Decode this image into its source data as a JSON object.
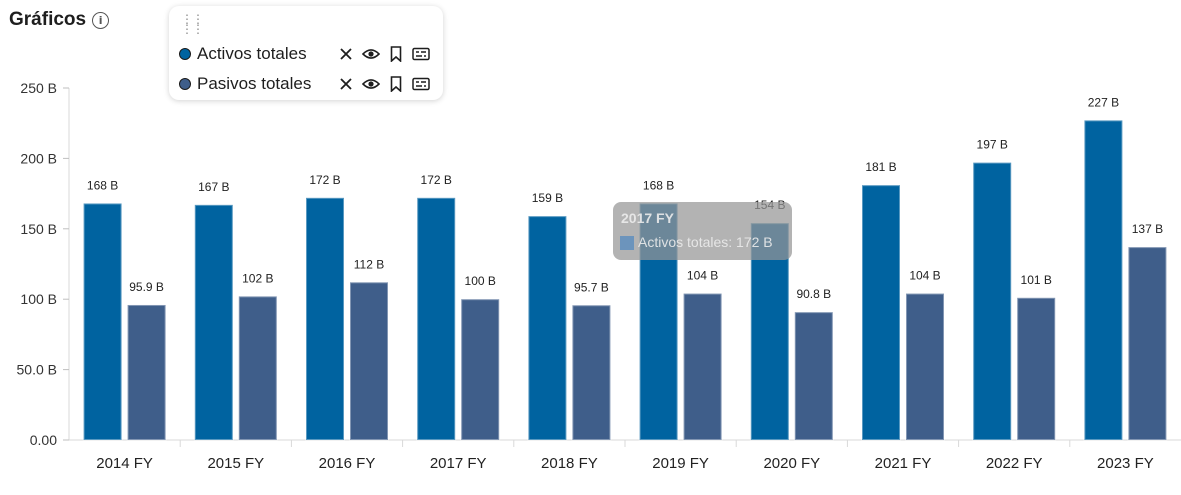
{
  "page": {
    "title": "Gráficos"
  },
  "legend": {
    "items": [
      {
        "label": "Activos totales",
        "color": "#0063a0"
      },
      {
        "label": "Pasivos totales",
        "color": "#3f5e8a"
      }
    ],
    "actions": [
      "close-icon",
      "eye-icon",
      "bookmark-icon",
      "details-icon"
    ]
  },
  "tooltip": {
    "title": "2017 FY",
    "series": "Activos totales",
    "value": "172 B"
  },
  "chart_data": {
    "type": "bar",
    "categories": [
      "2014 FY",
      "2015 FY",
      "2016 FY",
      "2017 FY",
      "2018 FY",
      "2019 FY",
      "2020 FY",
      "2021 FY",
      "2022 FY",
      "2023 FY"
    ],
    "series": [
      {
        "name": "Activos totales",
        "color": "#0063a0",
        "values": [
          168,
          167,
          172,
          172,
          159,
          168,
          154,
          181,
          197,
          227
        ],
        "labels": [
          "168 B",
          "167 B",
          "172 B",
          "172 B",
          "159 B",
          "168 B",
          "154 B",
          "181 B",
          "197 B",
          "227 B"
        ]
      },
      {
        "name": "Pasivos totales",
        "color": "#3f5e8a",
        "values": [
          95.9,
          102,
          112,
          100,
          95.7,
          104,
          90.8,
          104,
          101,
          137
        ],
        "labels": [
          "95.9 B",
          "102 B",
          "112 B",
          "100 B",
          "95.7 B",
          "104 B",
          "90.8 B",
          "104 B",
          "101 B",
          "137 B"
        ]
      }
    ],
    "ylim": [
      0,
      250
    ],
    "yticks": [
      0,
      50,
      100,
      150,
      200,
      250
    ],
    "ytick_labels": [
      "0.00",
      "50.0 B",
      "100 B",
      "150 B",
      "200 B",
      "250 B"
    ],
    "grid": false,
    "legend_position": "top-left"
  }
}
